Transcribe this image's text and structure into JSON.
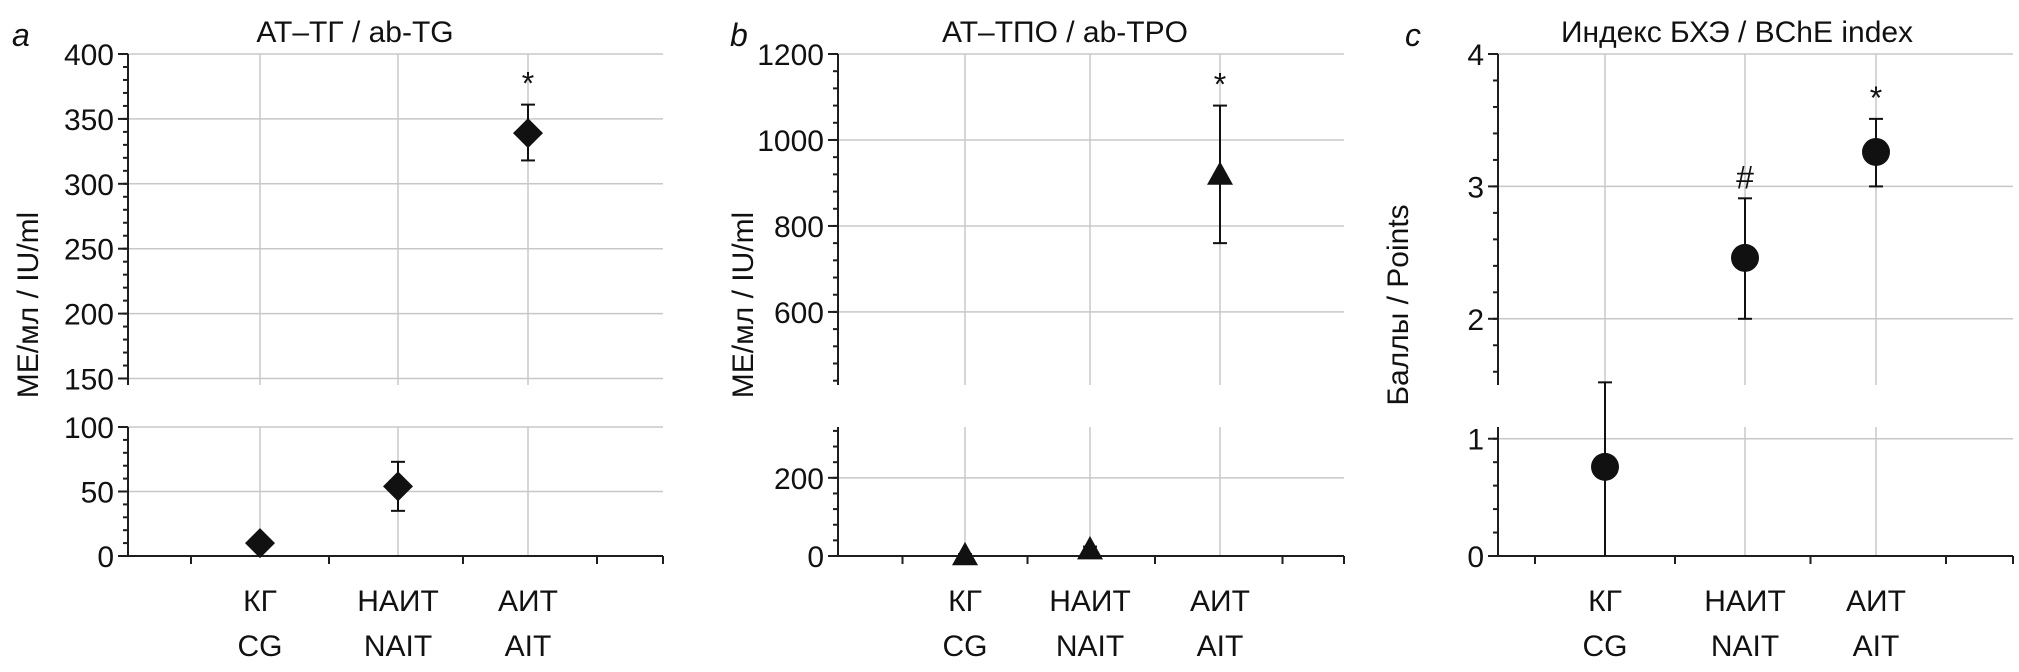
{
  "chart_data": [
    {
      "type": "scatter",
      "panel_letter": "a",
      "title": "АТ–ТГ / ab-TG",
      "ylabel": "МЕ/мл / IU/ml",
      "categories": [
        [
          "КГ",
          "CG"
        ],
        [
          "НАИТ",
          "NAIT"
        ],
        [
          "АИТ",
          "AIT"
        ]
      ],
      "axis_break": true,
      "upper_axis": {
        "ylim": [
          145,
          400
        ],
        "ticks": [
          "150",
          "200",
          "250",
          "300",
          "350",
          "400"
        ]
      },
      "lower_axis": {
        "ylim": [
          0,
          100
        ],
        "ticks": [
          "0",
          "50",
          "100"
        ]
      },
      "marker": "diamond",
      "grid": true,
      "points": [
        {
          "category": "КГ / CG",
          "value": 10,
          "err_low": 6,
          "err_high": 12,
          "annotation": ""
        },
        {
          "category": "НАИТ / NAIT",
          "value": 54,
          "err_low": 35,
          "err_high": 73,
          "annotation": ""
        },
        {
          "category": "АИТ / AIT",
          "value": 339,
          "err_low": 318,
          "err_high": 361,
          "annotation": "*"
        }
      ]
    },
    {
      "type": "scatter",
      "panel_letter": "b",
      "title": "АТ–ТПО / ab-TPO",
      "ylabel": "МЕ/мл / IU/ml",
      "categories": [
        [
          "КГ",
          "CG"
        ],
        [
          "НАИТ",
          "NAIT"
        ],
        [
          "АИТ",
          "AIT"
        ]
      ],
      "axis_break": true,
      "upper_axis": {
        "ylim": [
          430,
          1200
        ],
        "ticks": [
          "600",
          "800",
          "1000",
          "1200"
        ]
      },
      "lower_axis": {
        "ylim": [
          0,
          330
        ],
        "ticks": [
          "0",
          "200"
        ]
      },
      "marker": "triangle",
      "grid": true,
      "points": [
        {
          "category": "КГ / CG",
          "value": 3,
          "err_low": 0,
          "err_high": 5,
          "annotation": ""
        },
        {
          "category": "НАИТ / NAIT",
          "value": 18,
          "err_low": 12,
          "err_high": 24,
          "annotation": ""
        },
        {
          "category": "АИТ / AIT",
          "value": 920,
          "err_low": 760,
          "err_high": 1080,
          "annotation": "*"
        }
      ]
    },
    {
      "type": "scatter",
      "panel_letter": "c",
      "title": "Индекс БХЭ / BChE index",
      "ylabel": "Баллы / Points",
      "categories": [
        [
          "КГ",
          "CG"
        ],
        [
          "НАИТ",
          "NAIT"
        ],
        [
          "АИТ",
          "AIT"
        ]
      ],
      "axis_break": true,
      "upper_axis": {
        "ylim": [
          1.5,
          4
        ],
        "ticks": [
          "2",
          "3",
          "4"
        ]
      },
      "lower_axis": {
        "ylim": [
          0,
          1.1
        ],
        "ticks": [
          "0",
          "1"
        ]
      },
      "marker": "circle",
      "grid": true,
      "points": [
        {
          "category": "КГ / CG",
          "value": 0.76,
          "err_low": 0,
          "err_high": 1.52,
          "annotation": ""
        },
        {
          "category": "НАИТ / NAIT",
          "value": 2.46,
          "err_low": 2.0,
          "err_high": 2.91,
          "annotation": "#"
        },
        {
          "category": "АИТ / AIT",
          "value": 3.26,
          "err_low": 3.0,
          "err_high": 3.51,
          "annotation": "*"
        }
      ]
    }
  ]
}
